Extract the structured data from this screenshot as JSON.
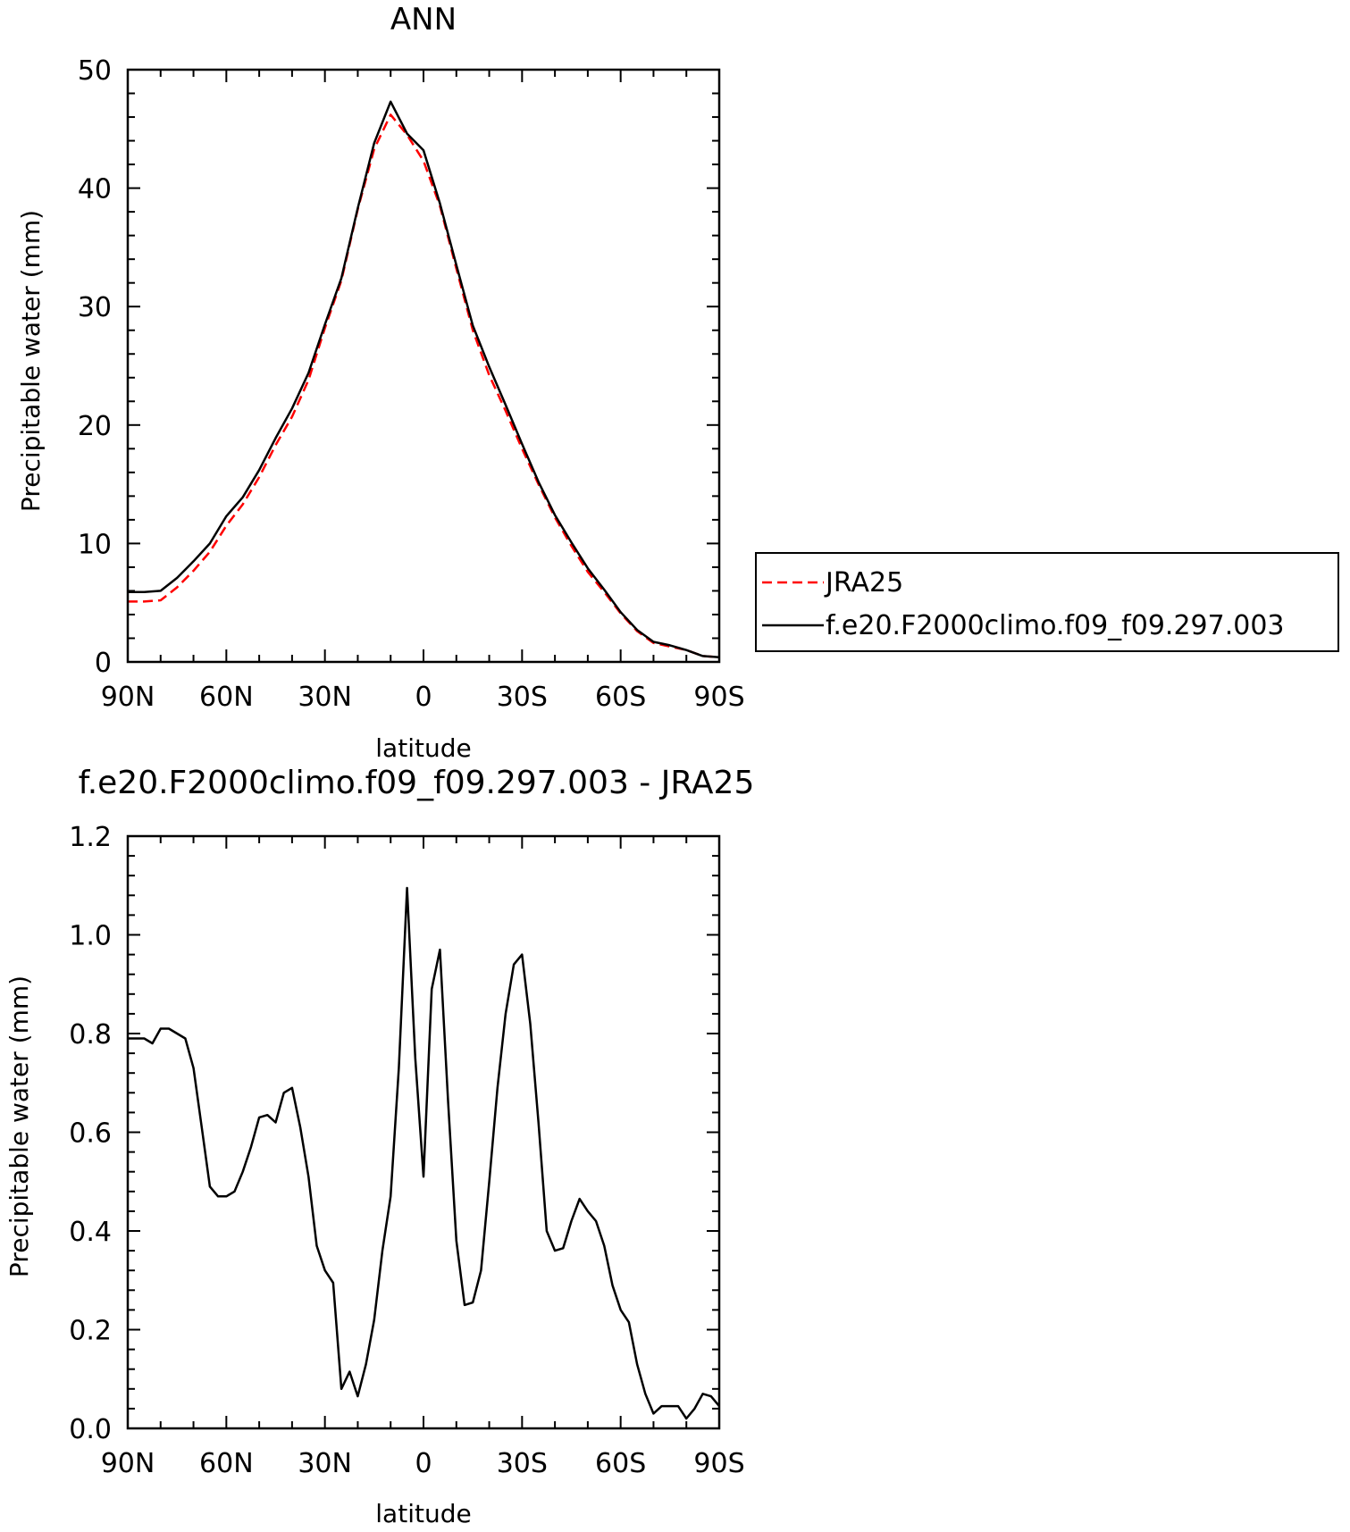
{
  "chart_data": [
    {
      "type": "line",
      "title": "ANN",
      "xlabel": "latitude",
      "ylabel": "Precipitable water (mm)",
      "x_ticks": [
        "90N",
        "60N",
        "30N",
        "0",
        "30S",
        "60S",
        "90S"
      ],
      "y_ticks": [
        "0",
        "10",
        "20",
        "30",
        "40",
        "50"
      ],
      "xlim": [
        90,
        -90
      ],
      "ylim": [
        0,
        50
      ],
      "x": [
        90,
        85,
        80,
        75,
        70,
        65,
        60,
        55,
        50,
        45,
        40,
        35,
        30,
        25,
        20,
        15,
        10,
        5,
        0,
        -5,
        -10,
        -15,
        -20,
        -25,
        -30,
        -35,
        -40,
        -45,
        -50,
        -55,
        -60,
        -65,
        -70,
        -75,
        -80,
        -85,
        -90
      ],
      "series": [
        {
          "name": "JRA25",
          "color": "#ff0000",
          "dash": "dashed",
          "values": [
            5.1,
            5.1,
            5.2,
            6.3,
            7.7,
            9.3,
            11.5,
            13.3,
            15.6,
            18.3,
            20.7,
            23.8,
            28.2,
            32.2,
            38.2,
            43.3,
            46.2,
            44.5,
            42.3,
            38.5,
            33.2,
            28.0,
            24.2,
            21.2,
            18.0,
            15.0,
            12.2,
            9.8,
            7.6,
            5.9,
            4.1,
            2.6,
            1.6,
            1.3,
            1.0,
            0.5,
            0.4
          ]
        },
        {
          "name": "f.e20.F2000climo.f09_f09.297.003",
          "color": "#000000",
          "dash": "solid",
          "values": [
            5.9,
            5.9,
            6.0,
            7.1,
            8.5,
            10.0,
            12.3,
            13.9,
            16.2,
            18.9,
            21.4,
            24.4,
            28.5,
            32.4,
            38.3,
            43.8,
            47.3,
            44.6,
            43.2,
            38.7,
            33.5,
            28.4,
            24.9,
            21.7,
            18.4,
            15.2,
            12.4,
            10.1,
            7.9,
            6.1,
            4.2,
            2.7,
            1.7,
            1.4,
            1.0,
            0.5,
            0.4
          ]
        }
      ]
    },
    {
      "type": "line",
      "title": "f.e20.F2000climo.f09_f09.297.003 - JRA25",
      "xlabel": "latitude",
      "ylabel": "Precipitable water (mm)",
      "x_ticks": [
        "90N",
        "60N",
        "30N",
        "0",
        "30S",
        "60S",
        "90S"
      ],
      "y_ticks": [
        "0.0",
        "0.2",
        "0.4",
        "0.6",
        "0.8",
        "1.0",
        "1.2"
      ],
      "xlim": [
        90,
        -90
      ],
      "ylim": [
        0,
        1.2
      ],
      "x": [
        90,
        87.5,
        85,
        82.5,
        80,
        77.5,
        75,
        72.5,
        70,
        67.5,
        65,
        62.5,
        60,
        57.5,
        55,
        52.5,
        50,
        47.5,
        45,
        42.5,
        40,
        37.5,
        35,
        32.5,
        30,
        27.5,
        25,
        22.5,
        20,
        17.5,
        15,
        12.5,
        10,
        7.5,
        5,
        2.5,
        0,
        -2.5,
        -5,
        -7.5,
        -10,
        -12.5,
        -15,
        -17.5,
        -20,
        -22.5,
        -25,
        -27.5,
        -30,
        -32.5,
        -35,
        -37.5,
        -40,
        -42.5,
        -45,
        -47.5,
        -50,
        -52.5,
        -55,
        -57.5,
        -60,
        -62.5,
        -65,
        -67.5,
        -70,
        -72.5,
        -75,
        -77.5,
        -80,
        -82.5,
        -85,
        -87.5,
        -90
      ],
      "series": [
        {
          "name": "",
          "color": "#000000",
          "dash": "solid",
          "values": [
            0.79,
            0.79,
            0.79,
            0.78,
            0.81,
            0.81,
            0.8,
            0.79,
            0.73,
            0.61,
            0.49,
            0.47,
            0.47,
            0.48,
            0.52,
            0.57,
            0.63,
            0.635,
            0.62,
            0.68,
            0.69,
            0.61,
            0.51,
            0.37,
            0.32,
            0.295,
            0.08,
            0.115,
            0.065,
            0.13,
            0.22,
            0.36,
            0.47,
            0.73,
            1.095,
            0.75,
            0.51,
            0.89,
            0.97,
            0.66,
            0.38,
            0.25,
            0.255,
            0.32,
            0.5,
            0.69,
            0.84,
            0.94,
            0.96,
            0.82,
            0.62,
            0.4,
            0.36,
            0.365,
            0.42,
            0.465,
            0.44,
            0.42,
            0.37,
            0.29,
            0.24,
            0.215,
            0.13,
            0.07,
            0.03,
            0.045,
            0.045,
            0.045,
            0.02,
            0.04,
            0.07,
            0.065,
            0.045
          ]
        }
      ]
    }
  ]
}
